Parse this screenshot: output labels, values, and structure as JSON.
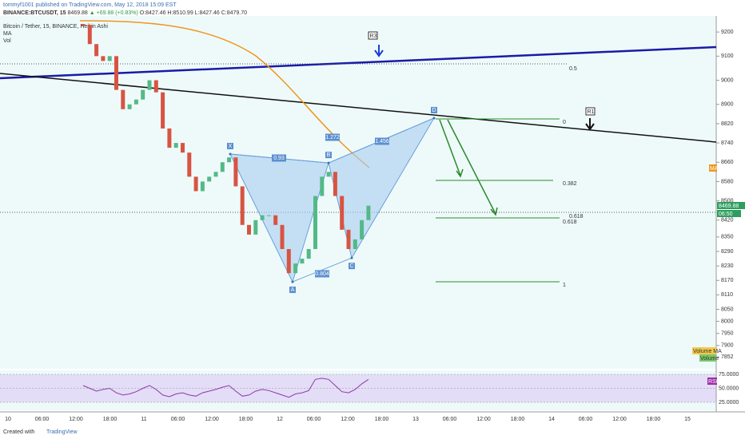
{
  "header": {
    "author_line": "tommyf1001 published on TradingView.com, May 12, 2018 15:09 EST",
    "symbol": "BINANCE:BTCUSDT, 15",
    "last": "8469.88",
    "change": "▲ +69.88 (+0.83%)",
    "ohlc": "O:8427.46 H:8510.99 L:8427.46 C:8479.70"
  },
  "legend": [
    "Bitcoin / Tether, 15, BINANCE, Heikin Ashi",
    "MA",
    "Vol"
  ],
  "price_axis": {
    "range": [
      7820,
      9260
    ],
    "ticks": [
      9200,
      9100,
      9000,
      8900,
      8820,
      8740,
      8660,
      8580,
      8500,
      8420,
      8350,
      8290,
      8230,
      8170,
      8110,
      8050,
      8000,
      7950,
      7900,
      7852
    ]
  },
  "price_tag": {
    "price": "8469.88",
    "countdown": "06:50"
  },
  "ma_tag": "MA",
  "time_axis": [
    "10",
    "06:00",
    "12:00",
    "18:00",
    "11",
    "06:00",
    "12:00",
    "18:00",
    "12",
    "06:00",
    "12:00",
    "18:00",
    "13",
    "06:00",
    "12:00",
    "18:00",
    "14",
    "06:00",
    "12:00",
    "18:00",
    "15"
  ],
  "price_series": {
    "closes": [
      9230,
      9150,
      9100,
      9080,
      9100,
      8960,
      8880,
      8900,
      8920,
      8960,
      9000,
      8950,
      8800,
      8720,
      8740,
      8700,
      8600,
      8540,
      8580,
      8600,
      8620,
      8660,
      8680,
      8560,
      8400,
      8360,
      8420,
      8440,
      8440,
      8400,
      8300,
      8200,
      8240,
      8260,
      8300,
      8520,
      8600,
      8620,
      8520,
      8380,
      8300,
      8340,
      8420,
      8480
    ]
  },
  "pattern": {
    "points": [
      {
        "label": "X",
        "price": 8694
      },
      {
        "label": "A",
        "price": 8164
      },
      {
        "label": "B",
        "price": 8657
      },
      {
        "label": "C",
        "price": 8263
      },
      {
        "label": "D",
        "price": 8843
      }
    ],
    "ratios": [
      "0.93",
      "0.804",
      "1.272",
      "1.456"
    ]
  },
  "fib_levels": [
    "0",
    "0.382",
    "0.618",
    "0.618",
    "1"
  ],
  "level_05": "0.5",
  "resistances": [
    "R3",
    "R1"
  ],
  "volume_labels": [
    "Volume MA",
    "Volume"
  ],
  "rsi": {
    "label": "RSI",
    "range": [
      15,
      85
    ],
    "ticks": [
      {
        "value": 75,
        "label": "75.0000"
      },
      {
        "value": 50,
        "label": "50.0000"
      },
      {
        "value": 25,
        "label": "25.0000"
      }
    ],
    "values": [
      55,
      50,
      45,
      48,
      50,
      42,
      38,
      40,
      44,
      50,
      55,
      48,
      38,
      35,
      40,
      42,
      38,
      36,
      42,
      45,
      48,
      52,
      55,
      45,
      36,
      38,
      45,
      48,
      46,
      42,
      38,
      34,
      40,
      42,
      46,
      66,
      68,
      66,
      55,
      44,
      42,
      48,
      58,
      66
    ]
  },
  "footer": {
    "created_with": "Created with",
    "brand": "TradingView"
  }
}
